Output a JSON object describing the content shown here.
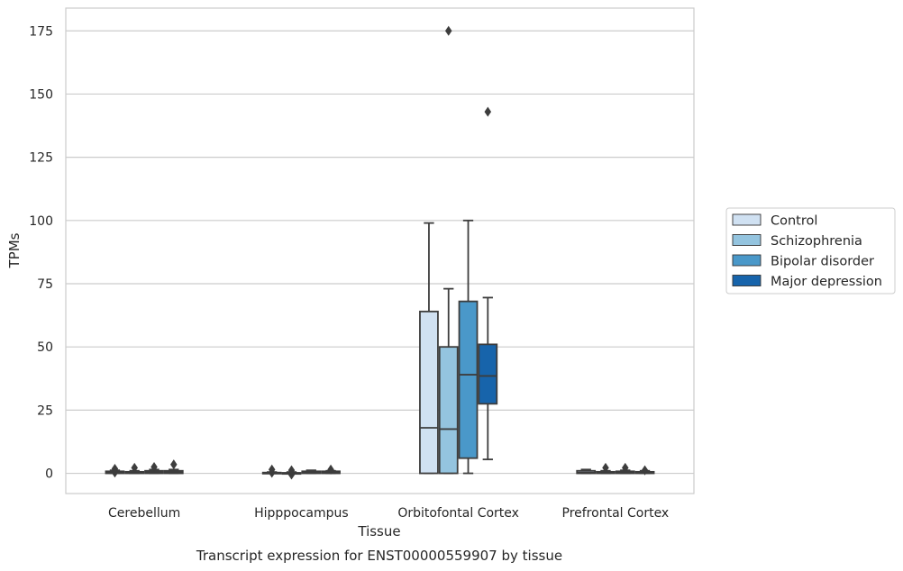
{
  "chart_data": {
    "type": "box",
    "title": "Transcript expression for ENST00000559907 by tissue",
    "xlabel": "Tissue",
    "ylabel": "TPMs",
    "categories": [
      "Cerebellum",
      "Hipppocampus",
      "Orbitofontal Cortex",
      "Prefrontal Cortex"
    ],
    "ylim": [
      -8,
      184
    ],
    "yticks": [
      0,
      25,
      50,
      75,
      100,
      125,
      150,
      175
    ],
    "grid": "horizontal",
    "legend_position": "right",
    "series": [
      {
        "name": "Control",
        "color": "#d0e1f2",
        "boxes": [
          {
            "whislo": 0,
            "q1": 0,
            "med": 0.3,
            "q3": 0.8,
            "whishi": 1.2,
            "fliers": [
              0.3,
              1.8
            ]
          },
          {
            "whislo": 0,
            "q1": 0,
            "med": 0,
            "q3": 0.3,
            "whishi": 0.5,
            "fliers": [
              0.2,
              1.5
            ]
          },
          {
            "whislo": 0,
            "q1": 0,
            "med": 18,
            "q3": 64,
            "whishi": 99,
            "fliers": []
          },
          {
            "whislo": 0,
            "q1": 0,
            "med": 0.3,
            "q3": 1,
            "whishi": 1.5,
            "fliers": []
          }
        ]
      },
      {
        "name": "Schizophrenia",
        "color": "#94c4df",
        "boxes": [
          {
            "whislo": 0,
            "q1": 0,
            "med": 0.2,
            "q3": 0.6,
            "whishi": 1,
            "fliers": [
              2.2
            ]
          },
          {
            "whislo": 0,
            "q1": 0,
            "med": 0,
            "q3": 0.2,
            "whishi": 0.5,
            "fliers": [
              -0.5,
              1.2
            ]
          },
          {
            "whislo": 0,
            "q1": 0,
            "med": 17.5,
            "q3": 50,
            "whishi": 73,
            "fliers": [
              175
            ]
          },
          {
            "whislo": 0,
            "q1": 0,
            "med": 0.2,
            "q3": 0.6,
            "whishi": 1,
            "fliers": [
              2.2
            ]
          }
        ]
      },
      {
        "name": "Bipolar disorder",
        "color": "#4a98c9",
        "boxes": [
          {
            "whislo": 0,
            "q1": 0,
            "med": 0.4,
            "q3": 1,
            "whishi": 1.5,
            "fliers": [
              2.5
            ]
          },
          {
            "whislo": 0,
            "q1": 0,
            "med": 0.3,
            "q3": 0.8,
            "whishi": 1.2,
            "fliers": []
          },
          {
            "whislo": 0,
            "q1": 6,
            "med": 39,
            "q3": 68,
            "whishi": 100,
            "fliers": []
          },
          {
            "whislo": 0,
            "q1": 0,
            "med": 0.3,
            "q3": 0.8,
            "whishi": 1.2,
            "fliers": [
              2.2
            ]
          }
        ]
      },
      {
        "name": "Major depression",
        "color": "#1764ab",
        "boxes": [
          {
            "whislo": 0,
            "q1": 0,
            "med": 0.4,
            "q3": 1,
            "whishi": 1.5,
            "fliers": [
              3.5
            ]
          },
          {
            "whislo": 0,
            "q1": 0,
            "med": 0.3,
            "q3": 0.8,
            "whishi": 1,
            "fliers": [
              1.5
            ]
          },
          {
            "whislo": 5.5,
            "q1": 27.5,
            "med": 38.5,
            "q3": 51,
            "whishi": 69.5,
            "fliers": [
              143
            ]
          },
          {
            "whislo": 0,
            "q1": 0,
            "med": 0.3,
            "q3": 0.6,
            "whishi": 1,
            "fliers": [
              1.2
            ]
          }
        ]
      }
    ]
  }
}
